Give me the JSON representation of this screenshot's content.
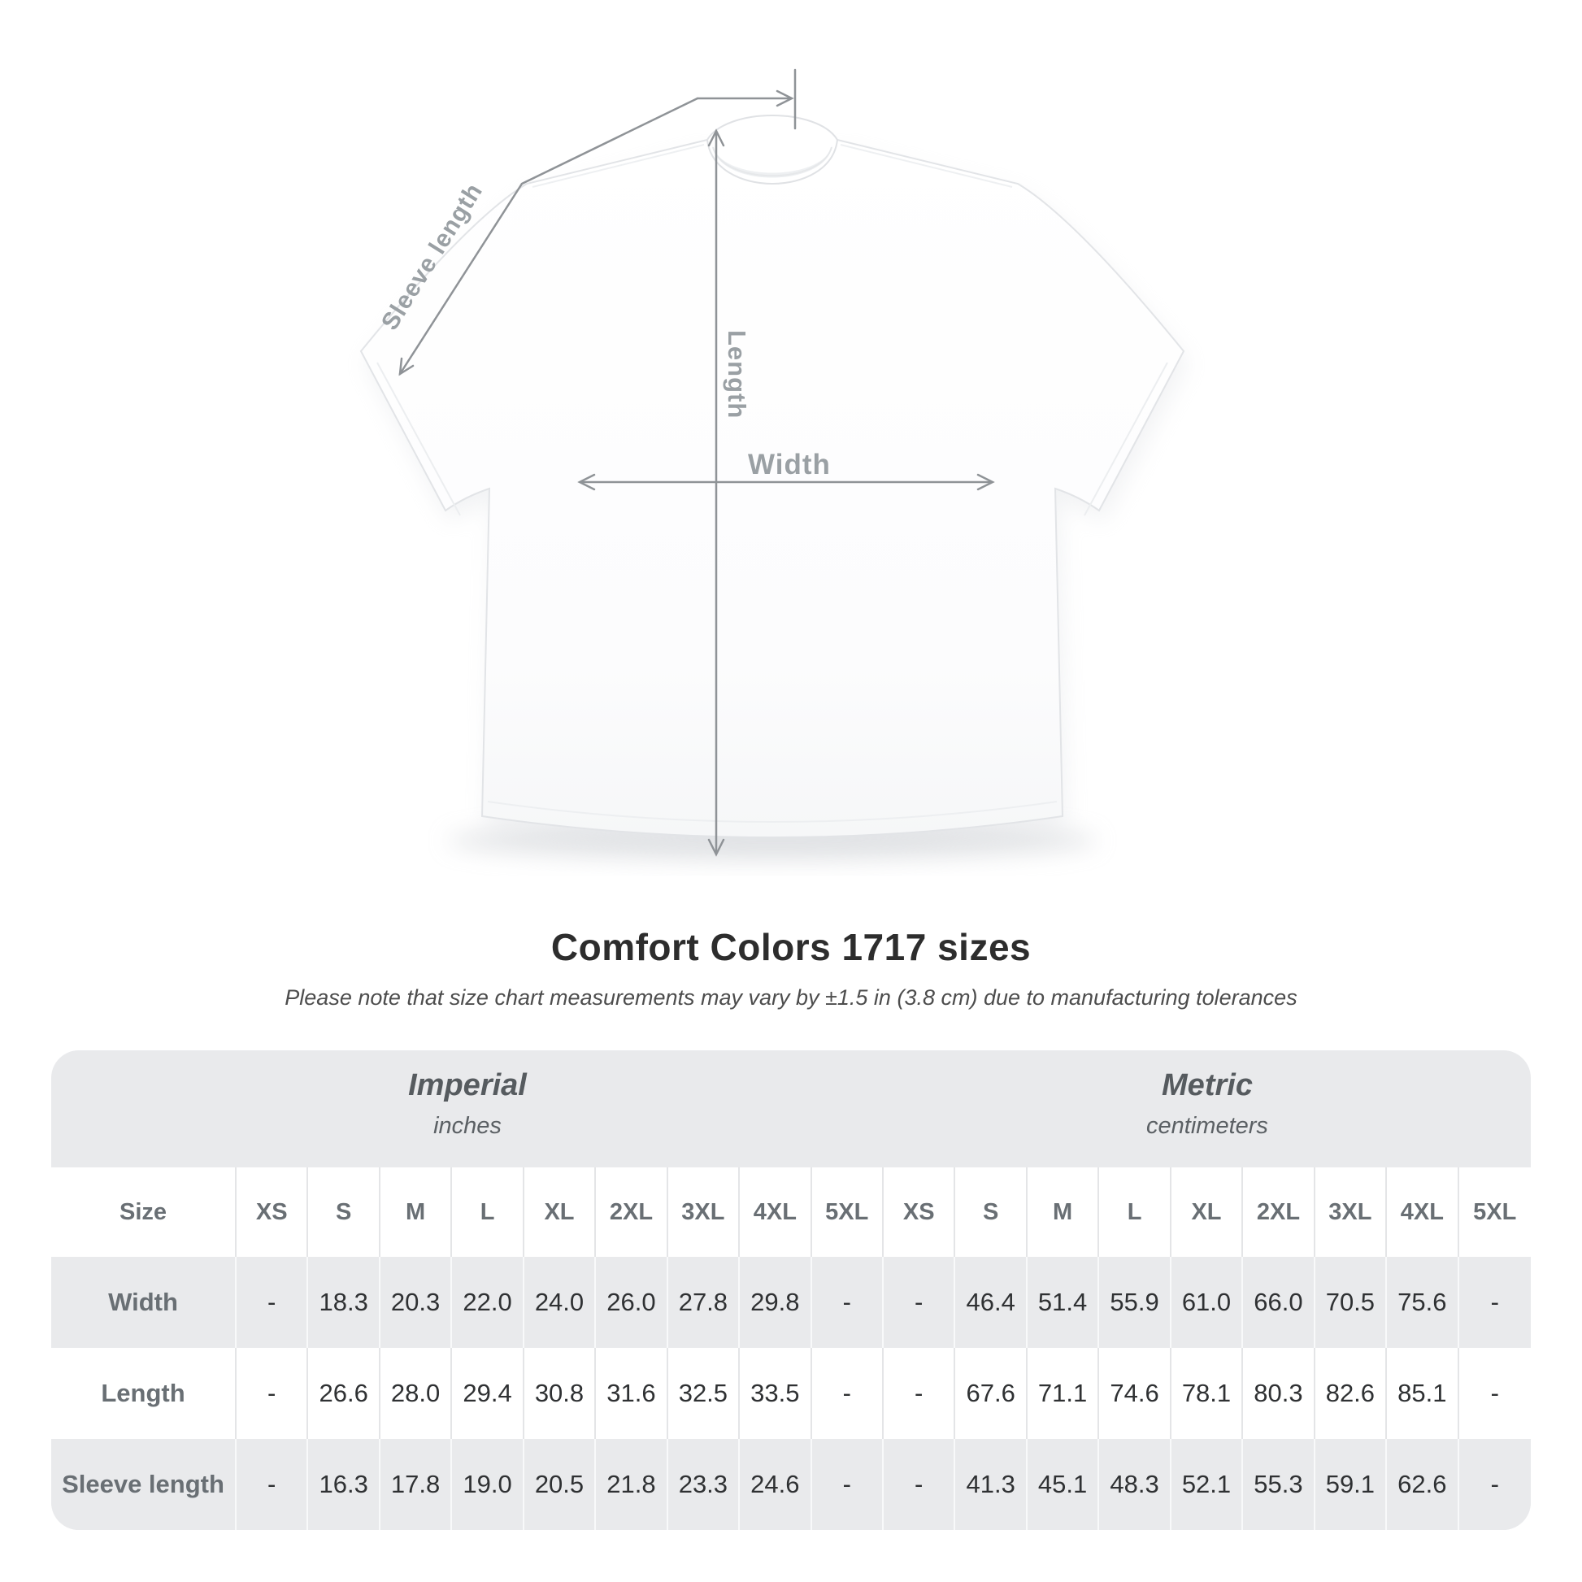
{
  "diagram": {
    "labels": {
      "sleeve_length": "Sleeve length",
      "length": "Length",
      "width": "Width"
    },
    "line_color": "#8f9397",
    "label_color": "#9aa0a4"
  },
  "heading": {
    "title": "Comfort Colors 1717 sizes",
    "subtitle": "Please note that size chart measurements may vary by ±1.5 in (3.8 cm) due to manufacturing tolerances"
  },
  "table": {
    "unit_groups": [
      {
        "name": "Imperial",
        "unit": "inches"
      },
      {
        "name": "Metric",
        "unit": "centimeters"
      }
    ],
    "size_header": "Size",
    "sizes": [
      "XS",
      "S",
      "M",
      "L",
      "XL",
      "2XL",
      "3XL",
      "4XL",
      "5XL"
    ],
    "rows": [
      {
        "label": "Width",
        "imperial": [
          "-",
          "18.3",
          "20.3",
          "22.0",
          "24.0",
          "26.0",
          "27.8",
          "29.8",
          "-"
        ],
        "metric": [
          "-",
          "46.4",
          "51.4",
          "55.9",
          "61.0",
          "66.0",
          "70.5",
          "75.6",
          "-"
        ]
      },
      {
        "label": "Length",
        "imperial": [
          "-",
          "26.6",
          "28.0",
          "29.4",
          "30.8",
          "31.6",
          "32.5",
          "33.5",
          "-"
        ],
        "metric": [
          "-",
          "67.6",
          "71.1",
          "74.6",
          "78.1",
          "80.3",
          "82.6",
          "85.1",
          "-"
        ]
      },
      {
        "label": "Sleeve length",
        "imperial": [
          "-",
          "16.3",
          "17.8",
          "19.0",
          "20.5",
          "21.8",
          "23.3",
          "24.6",
          "-"
        ],
        "metric": [
          "-",
          "41.3",
          "45.1",
          "48.3",
          "52.1",
          "55.3",
          "59.1",
          "62.6",
          "-"
        ]
      }
    ]
  },
  "colors": {
    "card_background": "#e9eaec",
    "row_stripe": "#e9eaec",
    "header_text": "#696f74",
    "value_text": "#2f3133",
    "title_text": "#2d2d2d"
  }
}
